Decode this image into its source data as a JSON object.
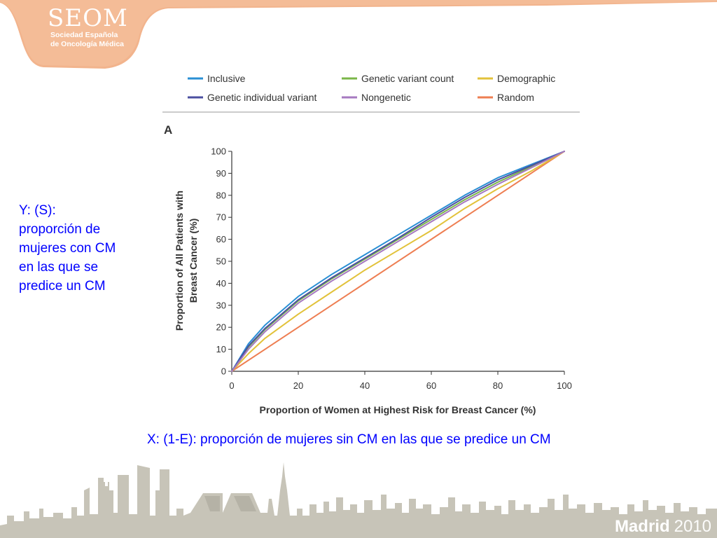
{
  "logo": {
    "title": "SEOM",
    "subtitle_line1": "Sociedad Española",
    "subtitle_line2": "de Oncología Médica",
    "color": "#f2b48d"
  },
  "annotations": {
    "y_lines": [
      "Y: (S):",
      "proporción de",
      "mujeres con CM",
      "en las que se",
      "predice un CM"
    ],
    "x_text": "X: (1-E): proporción de mujeres sin CM en las que se predice un CM",
    "color": "#0000ff"
  },
  "chart_data": {
    "type": "line",
    "panel_label": "A",
    "xlabel": "Proportion of Women at Highest Risk for Breast Cancer (%)",
    "ylabel_line1": "Proportion of All Patients with",
    "ylabel_line2": "Breast Cancer (%)",
    "xlim": [
      0,
      100
    ],
    "ylim": [
      0,
      100
    ],
    "xticks": [
      0,
      20,
      40,
      60,
      80,
      100
    ],
    "yticks": [
      0,
      10,
      20,
      30,
      40,
      50,
      60,
      70,
      80,
      90,
      100
    ],
    "grid": false,
    "legend_position": "top",
    "series": [
      {
        "name": "Inclusive",
        "color": "#2a8fd4",
        "x": [
          0,
          5,
          10,
          20,
          30,
          40,
          50,
          60,
          70,
          80,
          90,
          100
        ],
        "y": [
          0,
          12.5,
          21,
          34,
          44,
          53,
          62,
          71,
          80,
          88,
          94,
          100
        ]
      },
      {
        "name": "Genetic variant count",
        "color": "#7ab648",
        "x": [
          0,
          5,
          10,
          20,
          30,
          40,
          50,
          60,
          70,
          80,
          90,
          100
        ],
        "y": [
          0,
          11,
          19,
          32,
          42,
          51,
          60,
          69,
          78,
          86,
          93,
          100
        ]
      },
      {
        "name": "Demographic",
        "color": "#e2c23a",
        "x": [
          0,
          5,
          10,
          20,
          30,
          40,
          50,
          60,
          70,
          80,
          90,
          100
        ],
        "y": [
          0,
          8,
          15,
          26,
          36,
          46,
          55,
          64,
          74,
          83,
          91,
          100
        ]
      },
      {
        "name": "Genetic individual variant",
        "color": "#4b4fa0",
        "x": [
          0,
          5,
          10,
          20,
          30,
          40,
          50,
          60,
          70,
          80,
          90,
          100
        ],
        "y": [
          0,
          11.5,
          19.5,
          32.5,
          42.5,
          51.5,
          60.5,
          70,
          79,
          87,
          93.5,
          100
        ]
      },
      {
        "name": "Nongenetic",
        "color": "#a679c0",
        "x": [
          0,
          5,
          10,
          20,
          30,
          40,
          50,
          60,
          70,
          80,
          90,
          100
        ],
        "y": [
          0,
          10,
          18,
          31,
          41,
          50,
          59,
          68,
          77,
          85,
          92.5,
          100
        ]
      },
      {
        "name": "Random",
        "color": "#ee7e52",
        "x": [
          0,
          100
        ],
        "y": [
          0,
          100
        ]
      }
    ]
  },
  "footer": {
    "city": "Madrid",
    "year": "2010"
  }
}
